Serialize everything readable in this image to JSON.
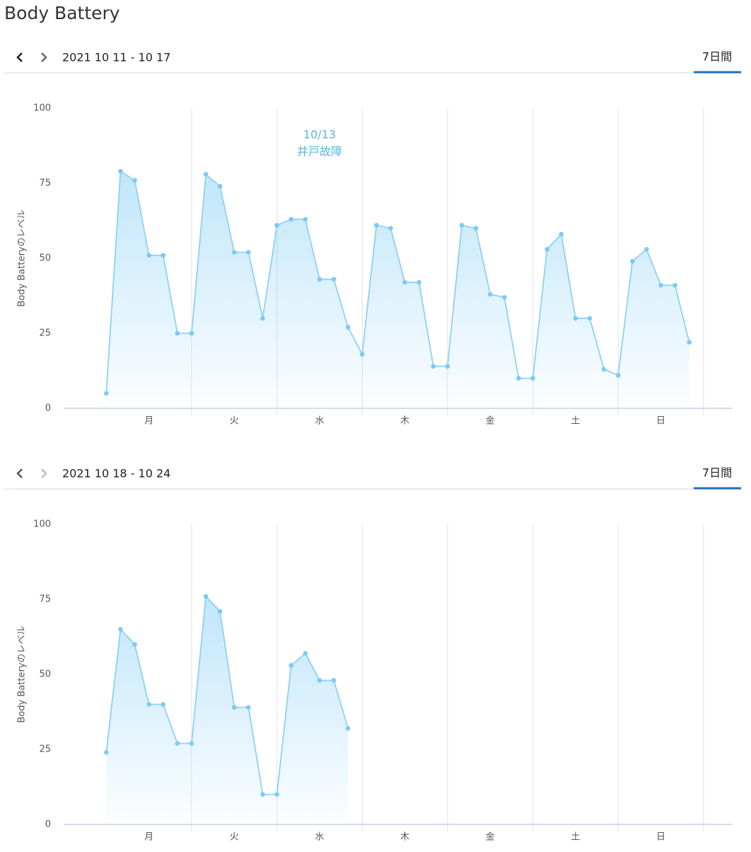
{
  "title": "Body Battery",
  "chart_data": [
    {
      "type": "area",
      "date_range": "2021 10 11 - 10 17",
      "period_tab": "7日間",
      "ylabel": "Body Batteryのレベル",
      "annotation": {
        "lines": [
          "10/13",
          "井戸故障"
        ],
        "x": 60,
        "y": 91
      },
      "series": [
        {
          "name": "Body Battery",
          "color": "#8dd1f6",
          "x": [
            0,
            4,
            8,
            12,
            16,
            20,
            24,
            28,
            32,
            36,
            40,
            44,
            48,
            52,
            56,
            60,
            64,
            68,
            72,
            76,
            80,
            84,
            88,
            92,
            96,
            100,
            104,
            108,
            112,
            116,
            120,
            124,
            128,
            132,
            136,
            140,
            144,
            148,
            152,
            156,
            160,
            164
          ],
          "values": [
            5,
            79,
            76,
            51,
            51,
            25,
            25,
            78,
            74,
            52,
            52,
            30,
            61,
            63,
            63,
            43,
            43,
            27,
            18,
            61,
            60,
            42,
            42,
            14,
            14,
            61,
            60,
            38,
            37,
            10,
            10,
            53,
            58,
            30,
            30,
            13,
            11,
            49,
            53,
            41,
            41,
            22
          ]
        }
      ],
      "xlim": [
        -12,
        176
      ],
      "xticks": [
        {
          "value": 12,
          "label": "月"
        },
        {
          "value": 36,
          "label": "火"
        },
        {
          "value": 60,
          "label": "水"
        },
        {
          "value": 84,
          "label": "木"
        },
        {
          "value": 108,
          "label": "金"
        },
        {
          "value": 132,
          "label": "土"
        },
        {
          "value": 156,
          "label": "日"
        }
      ],
      "ylim": [
        0,
        100
      ],
      "yticks": [
        0,
        25,
        50,
        75,
        100
      ]
    },
    {
      "type": "area",
      "date_range": "2021 10 18 - 10 24",
      "period_tab": "7日間",
      "ylabel": "Body Batteryのレベル",
      "series": [
        {
          "name": "Body Battery",
          "color": "#8dd1f6",
          "x": [
            0,
            4,
            8,
            12,
            16,
            20,
            24,
            28,
            32,
            36,
            40,
            44,
            48,
            52,
            56,
            60,
            64,
            68
          ],
          "values": [
            24,
            65,
            60,
            40,
            40,
            27,
            27,
            76,
            71,
            39,
            39,
            10,
            10,
            53,
            57,
            48,
            48,
            32
          ]
        }
      ],
      "xlim": [
        -12,
        176
      ],
      "xticks": [
        {
          "value": 12,
          "label": "月"
        },
        {
          "value": 36,
          "label": "火"
        },
        {
          "value": 60,
          "label": "水"
        },
        {
          "value": 84,
          "label": "木"
        },
        {
          "value": 108,
          "label": "金"
        },
        {
          "value": 132,
          "label": "土"
        },
        {
          "value": 156,
          "label": "日"
        }
      ],
      "ylim": [
        0,
        100
      ],
      "yticks": [
        0,
        25,
        50,
        75,
        100
      ]
    }
  ]
}
